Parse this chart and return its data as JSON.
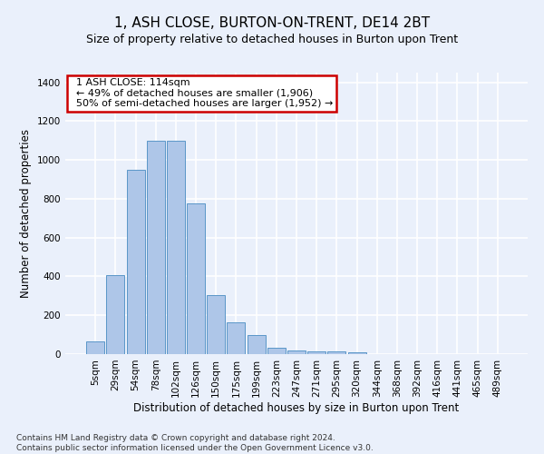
{
  "title": "1, ASH CLOSE, BURTON-ON-TRENT, DE14 2BT",
  "subtitle": "Size of property relative to detached houses in Burton upon Trent",
  "xlabel": "Distribution of detached houses by size in Burton upon Trent",
  "ylabel": "Number of detached properties",
  "footnote": "Contains HM Land Registry data © Crown copyright and database right 2024.\nContains public sector information licensed under the Open Government Licence v3.0.",
  "bar_labels": [
    "5sqm",
    "29sqm",
    "54sqm",
    "78sqm",
    "102sqm",
    "126sqm",
    "150sqm",
    "175sqm",
    "199sqm",
    "223sqm",
    "247sqm",
    "271sqm",
    "295sqm",
    "320sqm",
    "344sqm",
    "368sqm",
    "392sqm",
    "416sqm",
    "441sqm",
    "465sqm",
    "489sqm"
  ],
  "bar_values": [
    65,
    405,
    950,
    1100,
    1100,
    775,
    305,
    165,
    100,
    35,
    18,
    15,
    15,
    10,
    0,
    0,
    0,
    0,
    0,
    0,
    0
  ],
  "bar_color": "#aec6e8",
  "bar_edge_color": "#5a96c8",
  "annotation_text": "  1 ASH CLOSE: 114sqm\n  ← 49% of detached houses are smaller (1,906)\n  50% of semi-detached houses are larger (1,952) →",
  "annotation_box_color": "#ffffff",
  "annotation_box_edge_color": "#cc0000",
  "ylim": [
    0,
    1450
  ],
  "yticks": [
    0,
    200,
    400,
    600,
    800,
    1000,
    1200,
    1400
  ],
  "bg_color": "#eaf0fb",
  "grid_color": "#ffffff",
  "title_fontsize": 11,
  "subtitle_fontsize": 9,
  "axis_label_fontsize": 8.5,
  "tick_fontsize": 7.5,
  "annot_fontsize": 8
}
